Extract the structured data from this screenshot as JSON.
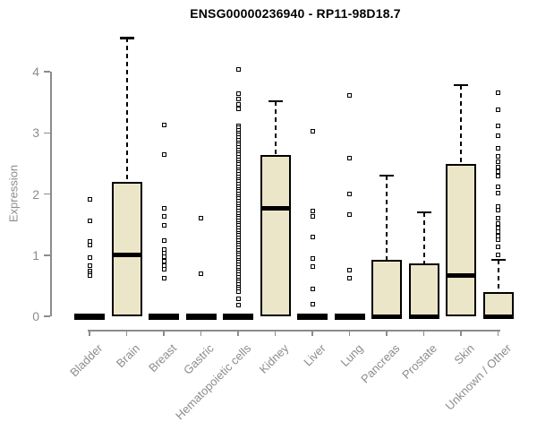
{
  "colors": {
    "box_fill": "#ece6c9",
    "ink": "#000000",
    "axis_gray": "#8c8c8c",
    "background": "#ffffff"
  },
  "chart_data": {
    "type": "boxplot",
    "title": "ENSG00000236940 - RP11-98D18.7",
    "ylabel": "Expression",
    "xlabel": "",
    "ylim": [
      0,
      4.6
    ],
    "yticks": [
      0,
      1,
      2,
      3,
      4
    ],
    "grid": false,
    "legend": "none",
    "categories": [
      "Bladder",
      "Brain",
      "Breast",
      "Gastric",
      "Hematopoietic cells",
      "Kidney",
      "Liver",
      "Lung",
      "Pancreas",
      "Prostate",
      "Skin",
      "Unknown / Other"
    ],
    "series": [
      {
        "name": "Bladder",
        "low": 0,
        "q1": 0,
        "median": 0,
        "q3": 0,
        "high": 0,
        "outliers": [
          1.91,
          1.56,
          1.22,
          1.16,
          0.96,
          0.83,
          0.74,
          0.7,
          0.66
        ]
      },
      {
        "name": "Brain",
        "low": 0,
        "q1": 0,
        "median": 1.0,
        "q3": 2.2,
        "high": 4.55,
        "outliers": []
      },
      {
        "name": "Breast",
        "low": 0,
        "q1": 0,
        "median": 0,
        "q3": 0,
        "high": 0,
        "outliers": [
          3.13,
          2.65,
          1.77,
          1.64,
          1.48,
          1.24,
          1.09,
          1.03,
          0.97,
          0.9,
          0.83,
          0.77,
          0.63
        ]
      },
      {
        "name": "Gastric",
        "low": 0,
        "q1": 0,
        "median": 0,
        "q3": 0,
        "high": 0,
        "outliers": [
          1.6,
          0.7
        ]
      },
      {
        "name": "Hematopoietic cells",
        "low": 0,
        "q1": 0,
        "median": 0,
        "q3": 0,
        "high": 0,
        "outliers": [
          4.03,
          3.64,
          3.55,
          3.47,
          3.39,
          3.12,
          3.08,
          3.04,
          3.0,
          2.96,
          2.92,
          2.88,
          2.84,
          2.8,
          2.76,
          2.72,
          2.68,
          2.64,
          2.6,
          2.56,
          2.52,
          2.48,
          2.44,
          2.4,
          2.36,
          2.32,
          2.28,
          2.24,
          2.2,
          2.16,
          2.12,
          2.08,
          2.04,
          2.0,
          1.96,
          1.92,
          1.88,
          1.84,
          1.8,
          1.76,
          1.72,
          1.68,
          1.64,
          1.6,
          1.56,
          1.52,
          1.48,
          1.44,
          1.4,
          1.36,
          1.32,
          1.28,
          1.24,
          1.2,
          1.16,
          1.12,
          1.08,
          1.04,
          1.0,
          0.96,
          0.92,
          0.88,
          0.84,
          0.8,
          0.76,
          0.72,
          0.68,
          0.64,
          0.6,
          0.56,
          0.52,
          0.48,
          0.44,
          0.4,
          0.29,
          0.19
        ]
      },
      {
        "name": "Kidney",
        "low": 0,
        "q1": 0,
        "median": 1.77,
        "q3": 2.64,
        "high": 3.52,
        "outliers": []
      },
      {
        "name": "Liver",
        "low": 0,
        "q1": 0,
        "median": 0,
        "q3": 0,
        "high": 0,
        "outliers": [
          3.03,
          1.72,
          1.64,
          1.3,
          0.95,
          0.82,
          0.45,
          0.2
        ]
      },
      {
        "name": "Lung",
        "low": 0,
        "q1": 0,
        "median": 0,
        "q3": 0,
        "high": 0,
        "outliers": [
          3.61,
          2.58,
          2.0,
          1.66,
          0.76,
          0.63
        ]
      },
      {
        "name": "Pancreas",
        "low": 0,
        "q1": 0,
        "median": 0,
        "q3": 0.93,
        "high": 2.3,
        "outliers": []
      },
      {
        "name": "Prostate",
        "low": 0,
        "q1": 0,
        "median": 0,
        "q3": 0.87,
        "high": 1.7,
        "outliers": []
      },
      {
        "name": "Skin",
        "low": 0,
        "q1": 0,
        "median": 0.66,
        "q3": 2.49,
        "high": 3.78,
        "outliers": []
      },
      {
        "name": "Unknown / Other",
        "low": 0,
        "q1": 0,
        "median": 0,
        "q3": 0.4,
        "high": 0.92,
        "outliers": [
          3.66,
          3.37,
          3.12,
          2.95,
          2.74,
          2.61,
          2.53,
          2.44,
          2.36,
          2.29,
          2.12,
          2.02,
          1.8,
          1.74,
          1.61,
          1.51,
          1.45,
          1.38,
          1.31,
          1.26,
          1.14,
          1.0
        ]
      }
    ]
  }
}
